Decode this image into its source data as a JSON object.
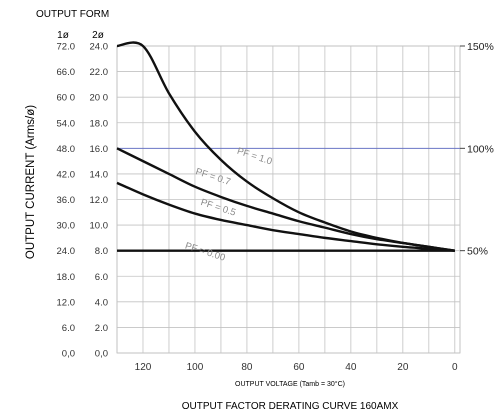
{
  "chart_data": {
    "type": "line",
    "header": "OUTPUT FORM",
    "ylabel": "OUTPUT CURRENT (Arms/ø)",
    "xlabel": "OUTPUT VOLTAGE (Tamb = 30°C)",
    "caption": "OUTPUT FACTOR DERATING CURVE 160AMX",
    "col_header_1phase": "1ø",
    "col_header_2phase": "2ø",
    "xlim": [
      130,
      -2
    ],
    "ylim": [
      0,
      24
    ],
    "x_ticks": [
      {
        "v": 120,
        "label": "120"
      },
      {
        "v": 100,
        "label": "100"
      },
      {
        "v": 80,
        "label": "80"
      },
      {
        "v": 60,
        "label": "60"
      },
      {
        "v": 40,
        "label": "40"
      },
      {
        "v": 20,
        "label": "20"
      },
      {
        "v": 0,
        "label": "0"
      }
    ],
    "y_ticks": [
      {
        "v": 24,
        "l1": "72.0",
        "l2": "24.0"
      },
      {
        "v": 22,
        "l1": "66.0",
        "l2": "22.0"
      },
      {
        "v": 20,
        "l1": "60 0",
        "l2": "20 0"
      },
      {
        "v": 18,
        "l1": "54.0",
        "l2": "18.0"
      },
      {
        "v": 16,
        "l1": "48.0",
        "l2": "16.0"
      },
      {
        "v": 14,
        "l1": "42.0",
        "l2": "14.0"
      },
      {
        "v": 12,
        "l1": "36.0",
        "l2": "12.0"
      },
      {
        "v": 10,
        "l1": "30.0",
        "l2": "10.0"
      },
      {
        "v": 8,
        "l1": "24.0",
        "l2": "8.0"
      },
      {
        "v": 6,
        "l1": "18.0",
        "l2": "6.0"
      },
      {
        "v": 4,
        "l1": "12.0",
        "l2": "4.0"
      },
      {
        "v": 2,
        "l1": "6.0",
        "l2": "2.0"
      },
      {
        "v": 0,
        "l1": "0,0",
        "l2": "0,0"
      }
    ],
    "right_ticks": [
      {
        "v": 24,
        "label": "150%"
      },
      {
        "v": 16,
        "label": "100%"
      },
      {
        "v": 8,
        "label": "50%"
      }
    ],
    "series": [
      {
        "name": "PF = 1.0",
        "points": [
          [
            130,
            24
          ],
          [
            120,
            24
          ],
          [
            110,
            20.3
          ],
          [
            100,
            17.3
          ],
          [
            90,
            15.1
          ],
          [
            80,
            13.4
          ],
          [
            70,
            12.1
          ],
          [
            60,
            11.0
          ],
          [
            50,
            10.2
          ],
          [
            40,
            9.5
          ],
          [
            30,
            9.0
          ],
          [
            20,
            8.6
          ],
          [
            10,
            8.3
          ],
          [
            0,
            8.0
          ]
        ]
      },
      {
        "name": "PF = 0.7",
        "points": [
          [
            130,
            16
          ],
          [
            120,
            15.0
          ],
          [
            110,
            14.0
          ],
          [
            100,
            13.0
          ],
          [
            90,
            12.2
          ],
          [
            80,
            11.5
          ],
          [
            70,
            10.9
          ],
          [
            60,
            10.3
          ],
          [
            50,
            9.8
          ],
          [
            40,
            9.3
          ],
          [
            30,
            8.9
          ],
          [
            20,
            8.6
          ],
          [
            10,
            8.3
          ],
          [
            0,
            8.0
          ]
        ]
      },
      {
        "name": "PF = 0.5",
        "points": [
          [
            130,
            13.3
          ],
          [
            120,
            12.4
          ],
          [
            110,
            11.6
          ],
          [
            100,
            10.9
          ],
          [
            90,
            10.4
          ],
          [
            80,
            10.0
          ],
          [
            70,
            9.6
          ],
          [
            60,
            9.3
          ],
          [
            50,
            9.0
          ],
          [
            40,
            8.75
          ],
          [
            30,
            8.5
          ],
          [
            20,
            8.3
          ],
          [
            10,
            8.15
          ],
          [
            0,
            8.0
          ]
        ]
      },
      {
        "name": "PF = 0.00",
        "points": [
          [
            130,
            8
          ],
          [
            0,
            8
          ]
        ]
      }
    ],
    "curve_labels": [
      {
        "text": "PF = 1.0",
        "x": 84,
        "y": 15.6
      },
      {
        "text": "PF = 0.7",
        "x": 100,
        "y": 14.0
      },
      {
        "text": "PF = 0.5",
        "x": 98,
        "y": 11.6
      },
      {
        "text": "PF = 0.00",
        "x": 104,
        "y": 8.2
      }
    ],
    "grid": true
  }
}
